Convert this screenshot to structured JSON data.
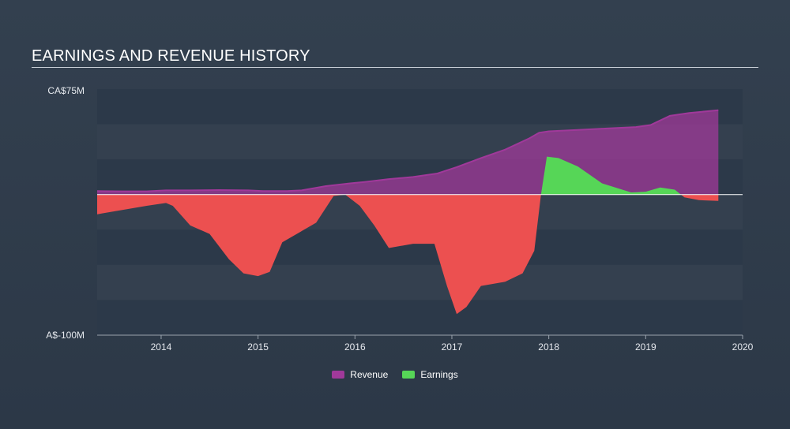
{
  "chart_data": {
    "type": "area",
    "title": "EARNINGS AND REVENUE HISTORY",
    "y_tick_labels": [
      "CA$75M",
      "A$-100M"
    ],
    "x_tick_labels": [
      "2014",
      "2015",
      "2016",
      "2017",
      "2018",
      "2019",
      "2020"
    ],
    "ylim": [
      -100,
      75
    ],
    "xlim": [
      2013.34,
      2020.0
    ],
    "grid": true,
    "legend_position": "bottom-center",
    "colors": {
      "revenue": "#a0399a",
      "earnings_positive": "#56d657",
      "earnings_negative": "#ec5050",
      "zero_line": "#ffffff"
    },
    "series": [
      {
        "name": "Revenue",
        "x": [
          2013.34,
          2013.6,
          2013.85,
          2014.05,
          2014.3,
          2014.6,
          2014.9,
          2015.05,
          2015.3,
          2015.45,
          2015.7,
          2015.95,
          2016.1,
          2016.35,
          2016.6,
          2016.85,
          2017.05,
          2017.3,
          2017.55,
          2017.8,
          2017.9,
          2018.0,
          2018.3,
          2018.6,
          2018.9,
          2019.05,
          2019.25,
          2019.45,
          2019.75
        ],
        "values": [
          2.5,
          2.3,
          2.3,
          3.0,
          3.0,
          3.2,
          3.0,
          2.5,
          2.5,
          3.0,
          6.0,
          8.0,
          9.0,
          11.0,
          12.5,
          15.0,
          19.5,
          26.0,
          32.0,
          40.0,
          44.0,
          45.0,
          46.0,
          47.0,
          48.0,
          49.5,
          56.0,
          58.0,
          60.0
        ]
      },
      {
        "name": "Earnings",
        "x": [
          2013.34,
          2013.85,
          2014.05,
          2014.12,
          2014.3,
          2014.5,
          2014.7,
          2014.85,
          2015.0,
          2015.12,
          2015.25,
          2015.4,
          2015.6,
          2015.78,
          2015.9,
          2016.05,
          2016.2,
          2016.35,
          2016.6,
          2016.82,
          2016.95,
          2017.05,
          2017.15,
          2017.3,
          2017.55,
          2017.73,
          2017.85,
          2017.92,
          2017.98,
          2018.1,
          2018.3,
          2018.55,
          2018.85,
          2019.0,
          2019.15,
          2019.3,
          2019.4,
          2019.55,
          2019.75
        ],
        "values": [
          -14.0,
          -8.0,
          -6.0,
          -8.0,
          -22.0,
          -28.0,
          -46.0,
          -56.0,
          -58.0,
          -55.0,
          -34.0,
          -28.0,
          -20.0,
          -1.0,
          0.0,
          -8.0,
          -22.0,
          -38.0,
          -35.0,
          -35.0,
          -65.0,
          -85.0,
          -80.0,
          -65.0,
          -62.0,
          -56.0,
          -40.0,
          0.0,
          27.0,
          26.0,
          20.0,
          8.0,
          1.5,
          2.0,
          5.0,
          3.5,
          -2.0,
          -4.0,
          -4.5
        ]
      }
    ]
  },
  "legend": {
    "revenue_label": "Revenue",
    "earnings_label": "Earnings"
  }
}
